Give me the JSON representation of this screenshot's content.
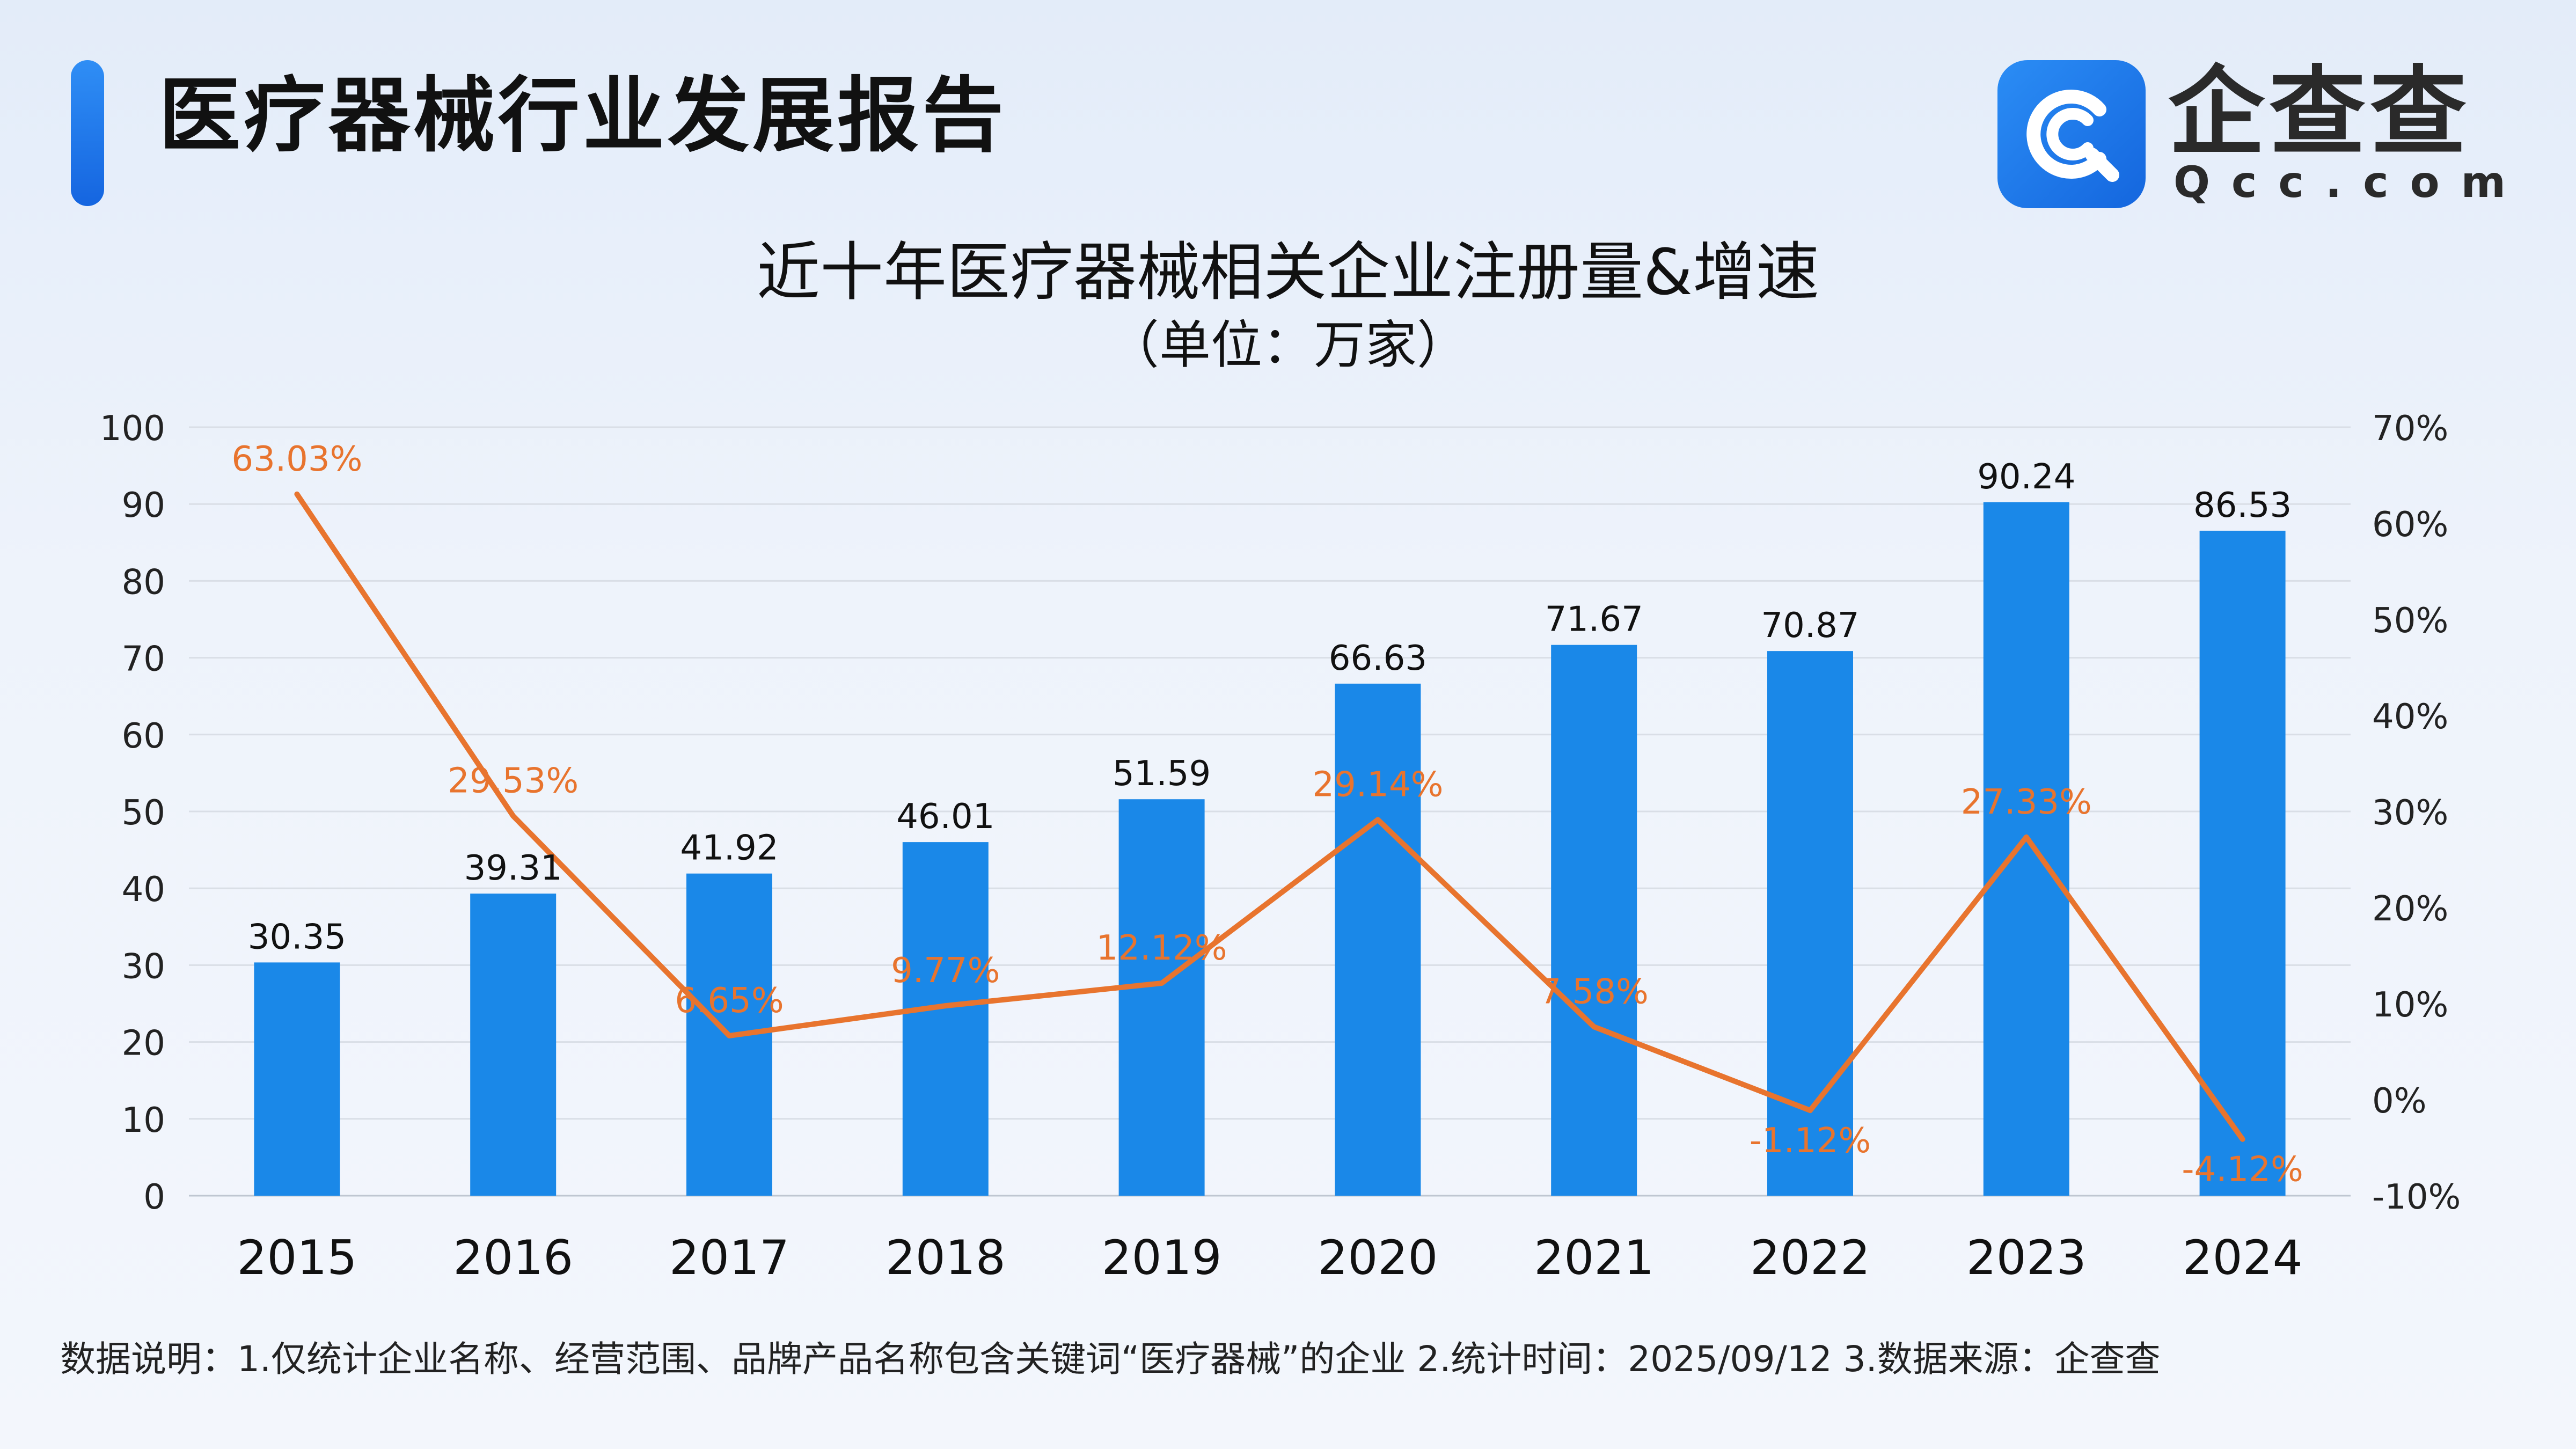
{
  "header": {
    "title": "医疗器械行业发展报告",
    "brand_name": "企查查",
    "brand_domain": "Qcc.com",
    "accent_color": "#1b7ae8"
  },
  "chart_data": {
    "type": "bar",
    "title": "近十年医疗器械相关企业注册量&增速",
    "subtitle": "（单位：万家）",
    "categories": [
      "2015",
      "2016",
      "2017",
      "2018",
      "2019",
      "2020",
      "2021",
      "2022",
      "2023",
      "2024"
    ],
    "series": [
      {
        "type": "bar",
        "axis": "left",
        "color": "#1a88e8",
        "values": [
          30.35,
          39.31,
          41.92,
          46.01,
          51.59,
          66.63,
          71.67,
          70.87,
          90.24,
          86.53
        ],
        "labels": [
          "30.35",
          "39.31",
          "41.92",
          "46.01",
          "51.59",
          "66.63",
          "71.67",
          "70.87",
          "90.24",
          "86.53"
        ]
      },
      {
        "type": "line",
        "axis": "right",
        "color": "#e8742e",
        "values": [
          63.03,
          29.53,
          6.65,
          9.77,
          12.12,
          29.14,
          7.58,
          -1.12,
          27.33,
          -4.12
        ],
        "labels": [
          "63.03%",
          "29.53%",
          "6.65%",
          "9.77%",
          "12.12%",
          "29.14%",
          "7.58%",
          "-1.12%",
          "27.33%",
          "-4.12%"
        ]
      }
    ],
    "y_left": {
      "range": [
        0,
        100
      ],
      "ticks": [
        0,
        10,
        20,
        30,
        40,
        50,
        60,
        70,
        80,
        90,
        100
      ],
      "tick_labels": [
        "0",
        "10",
        "20",
        "30",
        "40",
        "50",
        "60",
        "70",
        "80",
        "90",
        "100"
      ]
    },
    "y_right": {
      "range": [
        -10,
        70
      ],
      "ticks": [
        -10,
        0,
        10,
        20,
        30,
        40,
        50,
        60,
        70
      ],
      "tick_labels": [
        "-10%",
        "0%",
        "10%",
        "20%",
        "30%",
        "40%",
        "50%",
        "60%",
        "70%"
      ]
    },
    "grid": true,
    "legend": "none"
  },
  "footnote": "数据说明：1.仅统计企业名称、经营范围、品牌产品名称包含关键词“医疗器械”的企业   2.统计时间：2025/09/12   3.数据来源：企查查"
}
